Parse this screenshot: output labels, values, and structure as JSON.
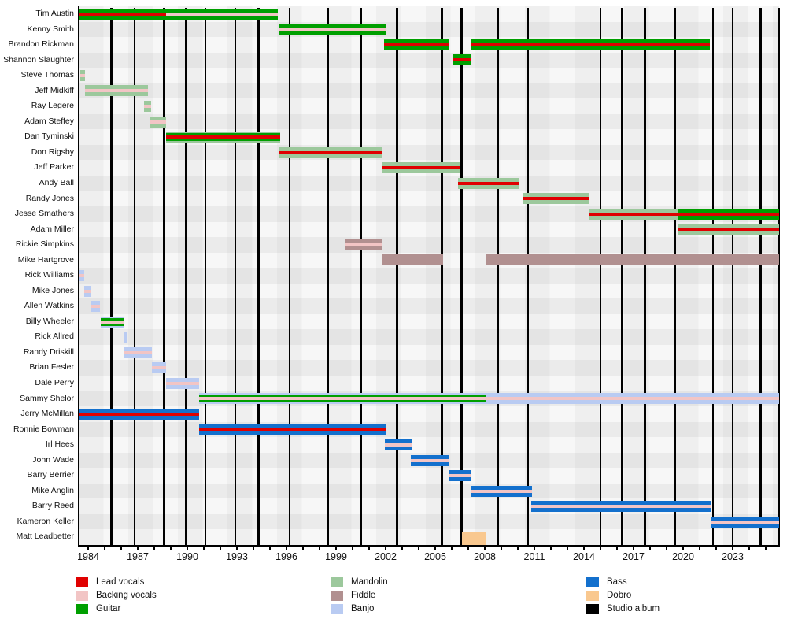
{
  "chart_data": {
    "type": "timeline",
    "title": "",
    "x_axis": {
      "min_year": 1983.43,
      "max_year": 2025.81,
      "label_years": [
        1984,
        1987,
        1990,
        1993,
        1996,
        1999,
        2002,
        2005,
        2008,
        2011,
        2014,
        2017,
        2020,
        2023
      ],
      "minor_tick_first": 1984,
      "minor_tick_last": 2025
    },
    "roles": {
      "lead": {
        "label": "Lead vocals",
        "color": "#e00000"
      },
      "backing": {
        "label": "Backing vocals",
        "color": "#f2c5c5"
      },
      "guitar": {
        "label": "Guitar",
        "color": "#009f00"
      },
      "mandolin": {
        "label": "Mandolin",
        "color": "#9cc89c"
      },
      "fiddle": {
        "label": "Fiddle",
        "color": "#b19090"
      },
      "banjo": {
        "label": "Banjo",
        "color": "#b9cbf2"
      },
      "bass": {
        "label": "Bass",
        "color": "#1370cd"
      },
      "dobro": {
        "label": "Dobro",
        "color": "#f9c88f"
      },
      "album": {
        "label": "Studio album",
        "color": "#000000"
      }
    },
    "legend_columns": [
      [
        "lead",
        "backing",
        "guitar"
      ],
      [
        "mandolin",
        "fiddle",
        "banjo"
      ],
      [
        "bass",
        "dobro",
        "album"
      ]
    ],
    "album_lines_years": [
      1985.4,
      1986.8,
      1988.6,
      1989.9,
      1991.1,
      1992.9,
      1994.3,
      1996.2,
      1998.5,
      2000.5,
      2002.7,
      2005.4,
      2006.6,
      2008.8,
      2010.6,
      2015.0,
      2016.3,
      2017.7,
      2019.5,
      2021.8,
      2023.0,
      2024.7
    ],
    "members": [
      {
        "name": "Tim Austin",
        "bars": [
          {
            "start": 1983.43,
            "end": 1988.7,
            "outer": "guitar",
            "center": "lead"
          },
          {
            "start": 1988.7,
            "end": 1995.5,
            "outer": "guitar",
            "center": "backing"
          }
        ]
      },
      {
        "name": "Kenny Smith",
        "bars": [
          {
            "start": 1995.5,
            "end": 2002.0,
            "outer": "guitar",
            "center": "backing"
          }
        ]
      },
      {
        "name": "Brandon Rickman",
        "bars": [
          {
            "start": 2001.9,
            "end": 2005.8,
            "outer": "guitar",
            "center": "lead"
          },
          {
            "start": 2007.2,
            "end": 2021.6,
            "outer": "guitar",
            "center": "lead"
          }
        ]
      },
      {
        "name": "Shannon Slaughter",
        "bars": [
          {
            "start": 2006.1,
            "end": 2007.2,
            "outer": "guitar",
            "center": "lead"
          }
        ]
      },
      {
        "name": "Steve Thomas",
        "bars": [
          {
            "start": 1983.5,
            "end": 1983.8,
            "outer": "mandolin",
            "center": "backing"
          }
        ]
      },
      {
        "name": "Jeff Midkiff",
        "bars": [
          {
            "start": 1983.8,
            "end": 1987.6,
            "outer": "mandolin",
            "center": "backing"
          }
        ]
      },
      {
        "name": "Ray Legere",
        "bars": [
          {
            "start": 1987.4,
            "end": 1987.8,
            "outer": "mandolin",
            "center": "backing"
          }
        ]
      },
      {
        "name": "Adam Steffey",
        "bars": [
          {
            "start": 1987.7,
            "end": 1988.7,
            "outer": "mandolin",
            "center": "backing"
          }
        ]
      },
      {
        "name": "Dan Tyminski",
        "bars": [
          {
            "start": 1988.7,
            "end": 1995.6,
            "outer": "mandolin",
            "mid": "guitar",
            "center": "lead"
          }
        ]
      },
      {
        "name": "Don Rigsby",
        "bars": [
          {
            "start": 1995.5,
            "end": 2001.8,
            "outer": "mandolin",
            "center": "lead"
          }
        ]
      },
      {
        "name": "Jeff Parker",
        "bars": [
          {
            "start": 2001.8,
            "end": 2006.5,
            "outer": "mandolin",
            "center": "lead"
          }
        ]
      },
      {
        "name": "Andy Ball",
        "bars": [
          {
            "start": 2006.4,
            "end": 2010.1,
            "outer": "mandolin",
            "center": "lead"
          }
        ]
      },
      {
        "name": "Randy Jones",
        "bars": [
          {
            "start": 2010.3,
            "end": 2014.3,
            "outer": "mandolin",
            "center": "lead"
          }
        ]
      },
      {
        "name": "Jesse Smathers",
        "bars": [
          {
            "start": 2014.3,
            "end": 2019.7,
            "outer": "mandolin",
            "center": "lead"
          },
          {
            "start": 2019.7,
            "end": 2025.81,
            "outer": "guitar",
            "center": "lead"
          }
        ]
      },
      {
        "name": "Adam Miller",
        "bars": [
          {
            "start": 2019.7,
            "end": 2025.81,
            "outer": "mandolin",
            "center": "lead"
          }
        ]
      },
      {
        "name": "Rickie Simpkins",
        "bars": [
          {
            "start": 1999.5,
            "end": 2001.8,
            "outer": "fiddle",
            "center": "backing"
          }
        ]
      },
      {
        "name": "Mike Hartgrove",
        "bars": [
          {
            "start": 2001.8,
            "end": 2005.5,
            "outer": "fiddle"
          },
          {
            "start": 2008.05,
            "end": 2025.81,
            "outer": "fiddle"
          }
        ]
      },
      {
        "name": "Rick Williams",
        "bars": [
          {
            "start": 1983.43,
            "end": 1983.76,
            "outer": "banjo",
            "center": "backing"
          }
        ]
      },
      {
        "name": "Mike Jones",
        "bars": [
          {
            "start": 1983.76,
            "end": 1984.14,
            "outer": "banjo",
            "center": "backing"
          }
        ]
      },
      {
        "name": "Allen Watkins",
        "bars": [
          {
            "start": 1984.14,
            "end": 1984.7,
            "outer": "banjo",
            "center": "backing"
          }
        ]
      },
      {
        "name": "Billy Wheeler",
        "bars": [
          {
            "start": 1984.76,
            "end": 1986.2,
            "outer": "banjo",
            "mid": "guitar",
            "center": "backing"
          }
        ]
      },
      {
        "name": "Rick Allred",
        "bars": [
          {
            "start": 1986.14,
            "end": 1986.33,
            "outer": "banjo"
          }
        ]
      },
      {
        "name": "Randy Driskill",
        "bars": [
          {
            "start": 1986.2,
            "end": 1987.86,
            "outer": "banjo",
            "center": "backing"
          }
        ]
      },
      {
        "name": "Brian Fesler",
        "bars": [
          {
            "start": 1987.86,
            "end": 1988.7,
            "outer": "banjo",
            "center": "backing"
          }
        ]
      },
      {
        "name": "Dale Perry",
        "bars": [
          {
            "start": 1988.7,
            "end": 1990.7,
            "outer": "banjo",
            "center": "backing"
          }
        ]
      },
      {
        "name": "Sammy Shelor",
        "bars": [
          {
            "start": 1990.7,
            "end": 2008.05,
            "outer": "banjo",
            "mid": "guitar",
            "center": "backing"
          },
          {
            "start": 2008.05,
            "end": 2025.81,
            "outer": "banjo",
            "center": "backing"
          }
        ]
      },
      {
        "name": "Jerry McMillan",
        "bars": [
          {
            "start": 1983.43,
            "end": 1990.7,
            "outer": "bass",
            "center": "lead"
          }
        ]
      },
      {
        "name": "Ronnie Bowman",
        "bars": [
          {
            "start": 1990.7,
            "end": 2002.05,
            "outer": "bass",
            "center": "lead"
          }
        ]
      },
      {
        "name": "Irl Hees",
        "bars": [
          {
            "start": 2001.95,
            "end": 2003.6,
            "outer": "bass",
            "center": "backing"
          }
        ]
      },
      {
        "name": "John Wade",
        "bars": [
          {
            "start": 2003.5,
            "end": 2005.8,
            "outer": "bass",
            "center": "backing"
          }
        ]
      },
      {
        "name": "Barry Berrier",
        "bars": [
          {
            "start": 2005.8,
            "end": 2007.2,
            "outer": "bass",
            "center": "backing"
          }
        ]
      },
      {
        "name": "Mike Anglin",
        "bars": [
          {
            "start": 2007.2,
            "end": 2010.85,
            "outer": "bass",
            "center": "backing"
          }
        ]
      },
      {
        "name": "Barry Reed",
        "bars": [
          {
            "start": 2010.8,
            "end": 2021.65,
            "outer": "bass",
            "center": "backing"
          }
        ]
      },
      {
        "name": "Kameron Keller",
        "bars": [
          {
            "start": 2021.65,
            "end": 2025.81,
            "outer": "bass",
            "center": "backing"
          }
        ]
      },
      {
        "name": "Matt Leadbetter",
        "bars": [
          {
            "start": 2006.6,
            "end": 2008.05,
            "outer": "dobro",
            "tall": true
          }
        ]
      }
    ]
  }
}
